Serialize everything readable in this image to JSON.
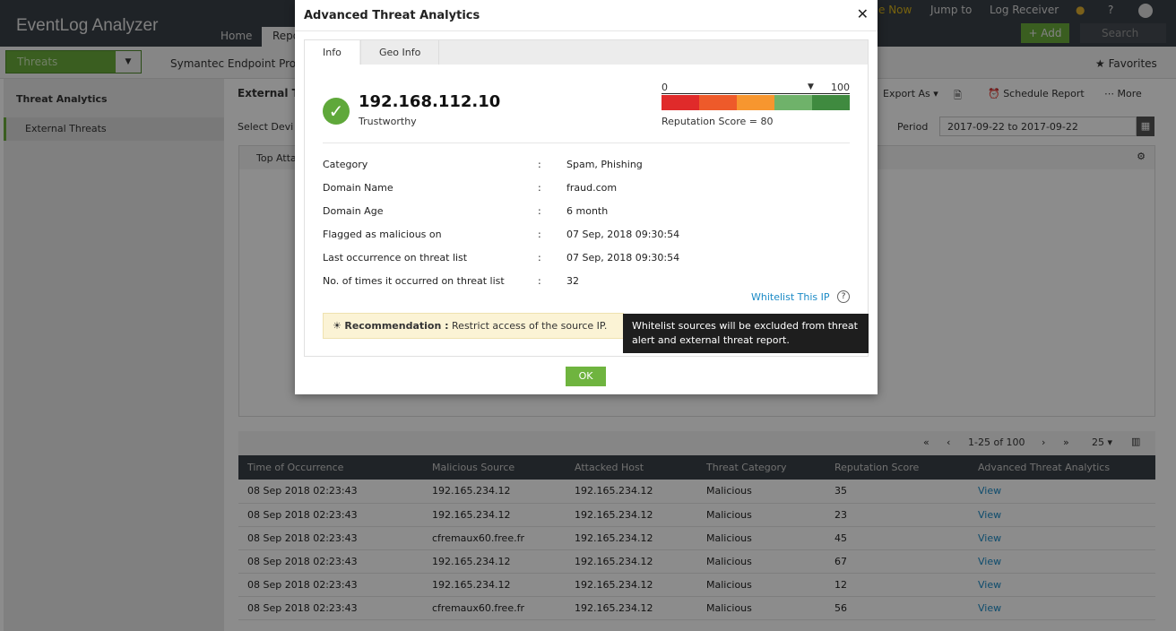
{
  "header": {
    "app_title": "EventLog Analyzer",
    "nav_tabs": [
      "Home",
      "Reports"
    ],
    "right_links": [
      "Jump to",
      "Log Receiver"
    ],
    "partial_link": "e Now",
    "help": "?",
    "add_label": "+ Add",
    "search_placeholder": "Search"
  },
  "subbar": {
    "category": "Threats",
    "device": "Symantec Endpoint Prote",
    "favorites": "Favorites"
  },
  "sidebar": {
    "section": "Threat Analytics",
    "items": [
      {
        "label": "External Threats",
        "active": true
      }
    ]
  },
  "main": {
    "title": "External Tl",
    "select_device": "Select Devi",
    "export": "Export As",
    "schedule": "Schedule Report",
    "more": "More",
    "period_label": "Period",
    "period_value": "2017-09-22  to  2017-09-22",
    "widget_title": "Top Atta"
  },
  "pagination": {
    "range": "1-25 of 100",
    "per_page": "25"
  },
  "table": {
    "columns": [
      "Time of Occurrence",
      "Malicious Source",
      "Attacked Host",
      "Threat Category",
      "Reputation Score",
      "Advanced Threat Analytics"
    ],
    "rows": [
      [
        "08 Sep 2018 02:23:43",
        "192.165.234.12",
        "192.165.234.12",
        "Malicious",
        "35",
        "View"
      ],
      [
        "08 Sep 2018 02:23:43",
        "192.165.234.12",
        "192.165.234.12",
        "Malicious",
        "23",
        "View"
      ],
      [
        "08 Sep 2018 02:23:43",
        "cfremaux60.free.fr",
        "192.165.234.12",
        "Malicious",
        "45",
        "View"
      ],
      [
        "08 Sep 2018 02:23:43",
        "192.165.234.12",
        "192.165.234.12",
        "Malicious",
        "67",
        "View"
      ],
      [
        "08 Sep 2018 02:23:43",
        "192.165.234.12",
        "192.165.234.12",
        "Malicious",
        "12",
        "View"
      ],
      [
        "08 Sep 2018 02:23:43",
        "cfremaux60.free.fr",
        "192.165.234.12",
        "Malicious",
        "56",
        "View"
      ]
    ]
  },
  "modal": {
    "title": "Advanced Threat Analytics",
    "tabs": [
      "Info",
      "Geo Info"
    ],
    "ip": "192.168.112.10",
    "status": "Trustworthy",
    "scale_min": "0",
    "scale_max": "100",
    "score": 80,
    "score_text": "Reputation Score = 80",
    "scale_colors": [
      "#e02a2a",
      "#ee5a2a",
      "#f7962f",
      "#6fb26a",
      "#3f8a3f"
    ],
    "details": [
      {
        "label": "Category",
        "value": "Spam, Phishing"
      },
      {
        "label": "Domain Name",
        "value": "fraud.com"
      },
      {
        "label": "Domain Age",
        "value": "6 month"
      },
      {
        "label": "Flagged as malicious on",
        "value": "07 Sep, 2018 09:30:54"
      },
      {
        "label": "Last occurrence on threat list",
        "value": "07 Sep, 2018 09:30:54"
      },
      {
        "label": "No. of times it occurred on threat list",
        "value": "32"
      }
    ],
    "separator": ":",
    "whitelist": "Whitelist This IP",
    "recommendation_label": "Recommendation :",
    "recommendation_text": "Restrict access of the source IP.",
    "tooltip": "Whitelist sources will be excluded from threat alert and external threat report.",
    "ok": "OK"
  }
}
